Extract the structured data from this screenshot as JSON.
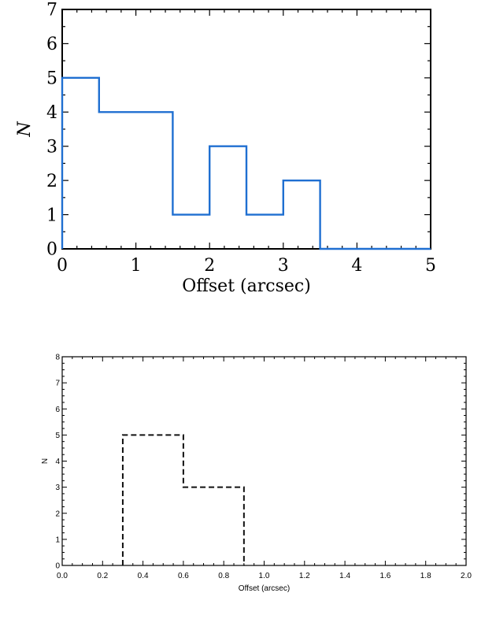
{
  "chart_data": [
    {
      "type": "histogram",
      "xlabel": "Offset (arcsec)",
      "ylabel": "N",
      "xlim": [
        0,
        5
      ],
      "ylim": [
        0,
        7
      ],
      "xticks": [
        "0",
        "1",
        "2",
        "3",
        "4",
        "5"
      ],
      "yticks": [
        "0",
        "1",
        "2",
        "3",
        "4",
        "5",
        "6",
        "7"
      ],
      "bin_edges": [
        0,
        0.5,
        1.5,
        2.0,
        2.5,
        3.0,
        3.5,
        5.0
      ],
      "counts": [
        5,
        4,
        1,
        3,
        1,
        2,
        0
      ],
      "line_style": "solid",
      "line_color": "#1f6fd1",
      "grid": false
    },
    {
      "type": "histogram",
      "xlabel": "Offset (arcsec)",
      "ylabel": "N",
      "xlim": [
        0,
        2
      ],
      "ylim": [
        0,
        8
      ],
      "xticks": [
        "0.0",
        "0.2",
        "0.4",
        "0.6",
        "0.8",
        "1.0",
        "1.2",
        "1.4",
        "1.6",
        "1.8",
        "2.0"
      ],
      "yticks": [
        "0",
        "1",
        "2",
        "3",
        "4",
        "5",
        "6",
        "7",
        "8"
      ],
      "bin_edges": [
        0.3,
        0.6,
        0.9
      ],
      "counts": [
        5,
        3
      ],
      "line_style": "dashed",
      "line_color": "#111111",
      "grid": false
    }
  ]
}
